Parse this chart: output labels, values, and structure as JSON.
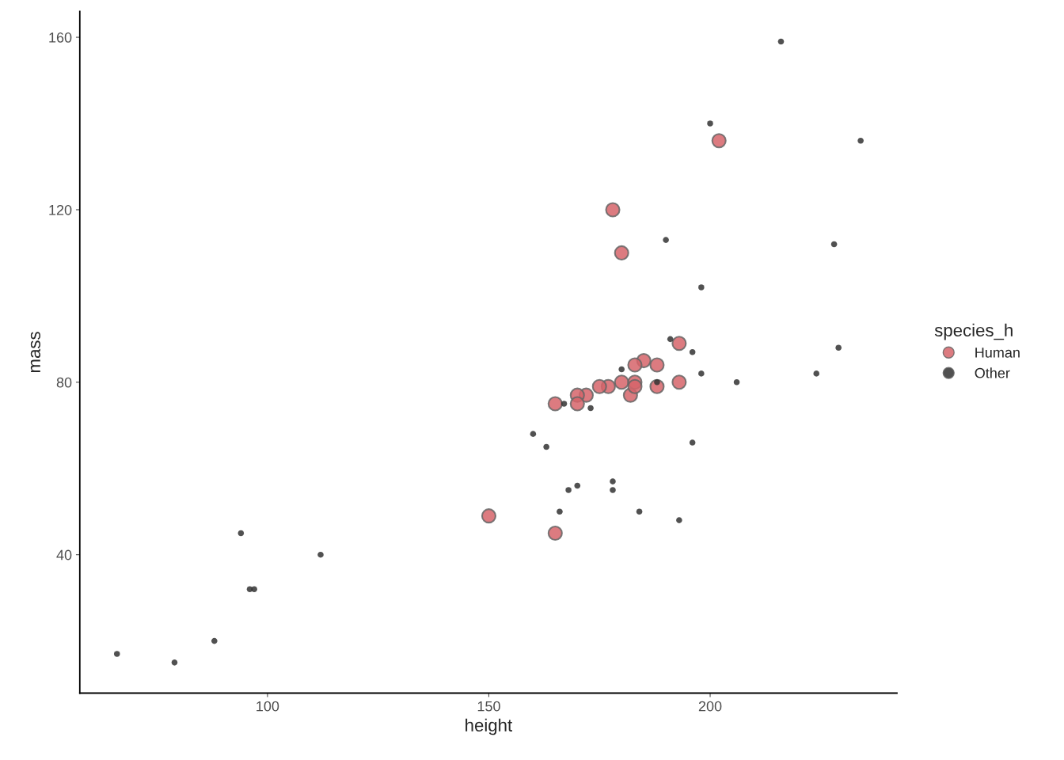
{
  "chart_data": {
    "type": "scatter",
    "xlabel": "height",
    "ylabel": "mass",
    "legend_title": "species_h",
    "legend": "right",
    "grid": false,
    "marker": "circle",
    "xlim": [
      57.6,
      242.2
    ],
    "xticks": [
      100,
      150,
      200
    ],
    "ylim": [
      7.9,
      166
    ],
    "yticks": [
      40,
      80,
      120,
      160
    ],
    "series": [
      {
        "name": "Human",
        "color": "#d6646a",
        "x": [
          202,
          178,
          180,
          193,
          185,
          183,
          188,
          193,
          180,
          188,
          177,
          175,
          172,
          170,
          183,
          182,
          183,
          165,
          150,
          165,
          170
        ],
        "values": [
          136,
          120,
          110,
          89,
          85,
          84,
          84,
          80,
          80,
          79,
          79,
          79,
          77,
          77,
          80,
          77,
          79,
          45,
          49,
          75,
          75
        ]
      },
      {
        "name": "Other",
        "color": "#333333",
        "x": [
          216,
          200,
          234,
          190,
          228,
          198,
          191,
          196,
          229,
          180,
          198,
          224,
          206,
          188,
          167,
          173,
          160,
          163,
          196,
          168,
          170,
          178,
          178,
          166,
          184,
          193,
          66,
          79,
          88,
          94,
          96,
          97,
          112
        ],
        "values": [
          159,
          140,
          136,
          113,
          112,
          102,
          90,
          87,
          88,
          83,
          82,
          82,
          80,
          80,
          75,
          74,
          68,
          65,
          66,
          55,
          56,
          57,
          55,
          50,
          50,
          48,
          17,
          15,
          20,
          45,
          32,
          32,
          40
        ]
      }
    ]
  }
}
